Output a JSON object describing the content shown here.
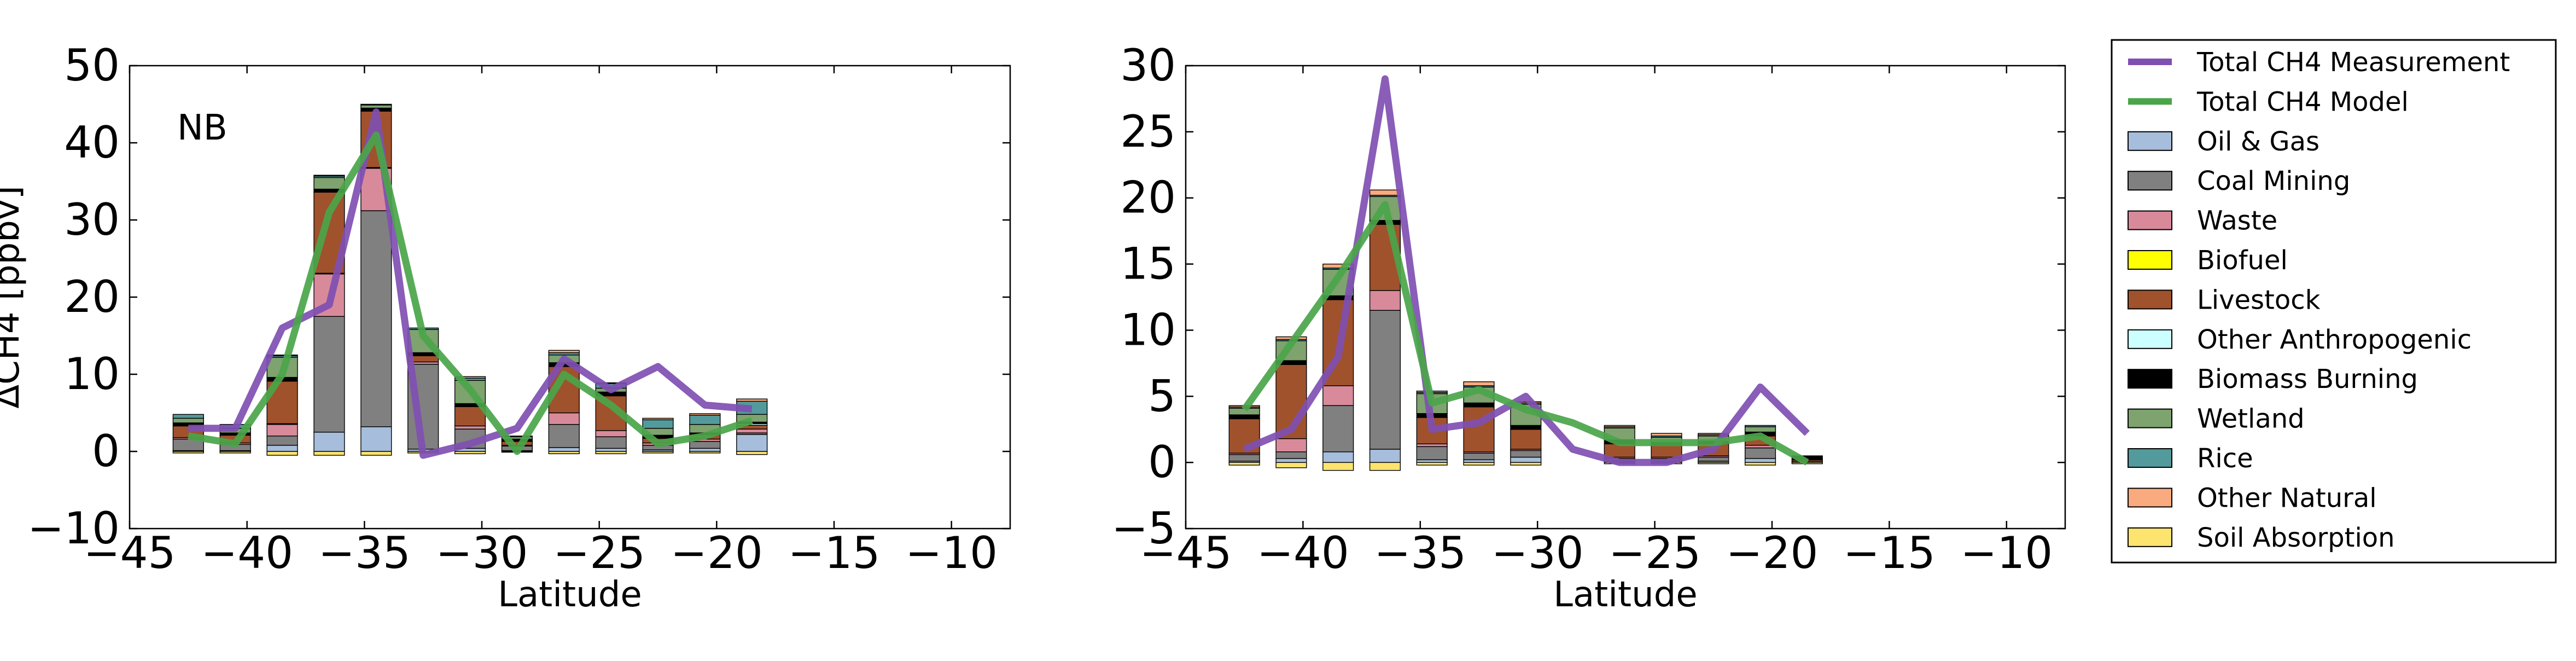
{
  "chart_data": [
    {
      "type": "bar",
      "title": "",
      "annotation": "NB",
      "xlabel": "Latitude",
      "ylabel": "ΔCH4 [ppbv]",
      "xlim": [
        -45,
        -7.5
      ],
      "ylim": [
        -10,
        50
      ],
      "xticks": [
        -45,
        -40,
        -35,
        -30,
        -25,
        -20,
        -15,
        -10
      ],
      "xtick_labels": [
        "−45",
        "−40",
        "−35",
        "−30",
        "−25",
        "−20",
        "−15",
        "−10"
      ],
      "yticks": [
        -10,
        0,
        10,
        20,
        30,
        40,
        50
      ],
      "ytick_labels": [
        "−10",
        "0",
        "10",
        "20",
        "30",
        "40",
        "50"
      ],
      "grid": false,
      "stack_order": [
        "Oil & Gas",
        "Coal Mining",
        "Waste",
        "Biofuel",
        "Livestock",
        "Other Anthropogenic",
        "Biomass Burning",
        "Wetland",
        "Rice",
        "Other Natural"
      ],
      "bars": [
        {
          "x": -42.5,
          "components": {
            "Oil & Gas": 0.1,
            "Coal Mining": 1.5,
            "Waste": 0.2,
            "Biofuel": 0.0,
            "Livestock": 1.5,
            "Other Anthropogenic": 0.0,
            "Biomass Burning": 0.4,
            "Wetland": 0.6,
            "Rice": 0.5,
            "Other Natural": 0.0
          },
          "soil": -0.2
        },
        {
          "x": -40.5,
          "components": {
            "Oil & Gas": 0.1,
            "Coal Mining": 0.8,
            "Waste": 0.2,
            "Biofuel": 0.0,
            "Livestock": 1.0,
            "Other Anthropogenic": 0.0,
            "Biomass Burning": 0.3,
            "Wetland": 0.6,
            "Rice": 0.5,
            "Other Natural": 0.0
          },
          "soil": -0.2
        },
        {
          "x": -38.5,
          "components": {
            "Oil & Gas": 0.8,
            "Coal Mining": 1.2,
            "Waste": 1.5,
            "Biofuel": 0.1,
            "Livestock": 5.5,
            "Other Anthropogenic": 0.1,
            "Biomass Burning": 0.4,
            "Wetland": 2.6,
            "Rice": 0.2,
            "Other Natural": 0.1
          },
          "soil": -0.5
        },
        {
          "x": -36.5,
          "components": {
            "Oil & Gas": 2.5,
            "Coal Mining": 15.0,
            "Waste": 5.5,
            "Biofuel": 0.1,
            "Livestock": 10.5,
            "Other Anthropogenic": 0.1,
            "Biomass Burning": 0.3,
            "Wetland": 1.5,
            "Rice": 0.2,
            "Other Natural": 0.1
          },
          "soil": -0.5
        },
        {
          "x": -34.5,
          "components": {
            "Oil & Gas": 3.2,
            "Coal Mining": 28.0,
            "Waste": 5.5,
            "Biofuel": 0.1,
            "Livestock": 7.3,
            "Other Anthropogenic": 0.1,
            "Biomass Burning": 0.3,
            "Wetland": 0.4,
            "Rice": 0.1,
            "Other Natural": 0.0
          },
          "soil": -0.5
        },
        {
          "x": -32.5,
          "components": {
            "Oil & Gas": 0.3,
            "Coal Mining": 11.0,
            "Waste": 0.3,
            "Biofuel": 0.0,
            "Livestock": 0.8,
            "Other Anthropogenic": 0.0,
            "Biomass Burning": 0.4,
            "Wetland": 3.0,
            "Rice": 0.2,
            "Other Natural": 0.0
          },
          "soil": -0.2
        },
        {
          "x": -30.5,
          "components": {
            "Oil & Gas": 0.4,
            "Coal Mining": 2.5,
            "Waste": 0.4,
            "Biofuel": 0.0,
            "Livestock": 2.5,
            "Other Anthropogenic": 0.0,
            "Biomass Burning": 0.4,
            "Wetland": 3.0,
            "Rice": 0.3,
            "Other Natural": 0.2
          },
          "soil": -0.3
        },
        {
          "x": -28.5,
          "components": {
            "Oil & Gas": 0.1,
            "Coal Mining": 0.6,
            "Waste": 0.1,
            "Biofuel": 0.0,
            "Livestock": 0.5,
            "Other Anthropogenic": 0.0,
            "Biomass Burning": 0.3,
            "Wetland": 0.3,
            "Rice": 0.1,
            "Other Natural": 0.0
          },
          "soil": -0.1
        },
        {
          "x": -26.5,
          "components": {
            "Oil & Gas": 0.5,
            "Coal Mining": 3.0,
            "Waste": 1.5,
            "Biofuel": 0.0,
            "Livestock": 6.0,
            "Other Anthropogenic": 0.0,
            "Biomass Burning": 0.5,
            "Wetland": 1.0,
            "Rice": 0.3,
            "Other Natural": 0.3
          },
          "soil": -0.3
        },
        {
          "x": -24.5,
          "components": {
            "Oil & Gas": 0.4,
            "Coal Mining": 1.5,
            "Waste": 0.8,
            "Biofuel": 0.0,
            "Livestock": 4.5,
            "Other Anthropogenic": 0.0,
            "Biomass Burning": 0.5,
            "Wetland": 0.5,
            "Rice": 0.6,
            "Other Natural": 0.1
          },
          "soil": -0.3
        },
        {
          "x": -22.5,
          "components": {
            "Oil & Gas": 0.2,
            "Coal Mining": 0.6,
            "Waste": 0.3,
            "Biofuel": 0.0,
            "Livestock": 0.6,
            "Other Anthropogenic": 0.1,
            "Biomass Burning": 0.3,
            "Wetland": 0.9,
            "Rice": 1.1,
            "Other Natural": 0.2
          },
          "soil": -0.2
        },
        {
          "x": -20.5,
          "components": {
            "Oil & Gas": 0.4,
            "Coal Mining": 0.9,
            "Waste": 0.3,
            "Biofuel": 0.0,
            "Livestock": 0.6,
            "Other Anthropogenic": 0.0,
            "Biomass Burning": 0.2,
            "Wetland": 1.1,
            "Rice": 1.2,
            "Other Natural": 0.2
          },
          "soil": -0.2
        },
        {
          "x": -18.5,
          "components": {
            "Oil & Gas": 2.2,
            "Coal Mining": 0.2,
            "Waste": 0.5,
            "Biofuel": 0.0,
            "Livestock": 0.5,
            "Other Anthropogenic": 0.2,
            "Biomass Burning": 0.2,
            "Wetland": 1.0,
            "Rice": 1.7,
            "Other Natural": 0.3
          },
          "soil": -0.4
        }
      ],
      "series": [
        {
          "name": "Total CH4 Measurement",
          "color": "#7f4fb2",
          "x": [
            -42.5,
            -40.5,
            -38.5,
            -36.5,
            -34.5,
            -32.5,
            -30.5,
            -28.5,
            -26.5,
            -24.5,
            -22.5,
            -20.5,
            -18.5
          ],
          "y": [
            3,
            3,
            16,
            19,
            44,
            -0.5,
            1,
            3,
            12,
            8,
            11,
            6,
            5.5
          ]
        },
        {
          "name": "Total CH4 Model",
          "color": "#4aa54a",
          "x": [
            -42.5,
            -40.5,
            -38.5,
            -36.5,
            -34.5,
            -32.5,
            -30.5,
            -28.5,
            -26.5,
            -24.5,
            -22.5,
            -20.5,
            -18.5
          ],
          "y": [
            2,
            1,
            10,
            31,
            41,
            15,
            8,
            0,
            10,
            6,
            1,
            2,
            4
          ]
        }
      ]
    },
    {
      "type": "bar",
      "title": "",
      "annotation": "",
      "xlabel": "Latitude",
      "ylabel": "",
      "xlim": [
        -45,
        -7.5
      ],
      "ylim": [
        -5,
        30
      ],
      "xticks": [
        -45,
        -40,
        -35,
        -30,
        -25,
        -20,
        -15,
        -10
      ],
      "xtick_labels": [
        "−45",
        "−40",
        "−35",
        "−30",
        "−25",
        "−20",
        "−15",
        "−10"
      ],
      "yticks": [
        -5,
        0,
        5,
        10,
        15,
        20,
        25,
        30
      ],
      "ytick_labels": [
        "−5",
        "0",
        "5",
        "10",
        "15",
        "20",
        "25",
        "30"
      ],
      "grid": false,
      "stack_order": [
        "Oil & Gas",
        "Coal Mining",
        "Waste",
        "Biofuel",
        "Livestock",
        "Other Anthropogenic",
        "Biomass Burning",
        "Wetland",
        "Rice",
        "Other Natural"
      ],
      "bars": [
        {
          "x": -42.5,
          "components": {
            "Oil & Gas": 0.1,
            "Coal Mining": 0.5,
            "Waste": 0.1,
            "Biofuel": 0.0,
            "Livestock": 2.6,
            "Other Anthropogenic": 0.0,
            "Biomass Burning": 0.3,
            "Wetland": 0.5,
            "Rice": 0.1,
            "Other Natural": 0.1
          },
          "soil": -0.2
        },
        {
          "x": -40.5,
          "components": {
            "Oil & Gas": 0.3,
            "Coal Mining": 0.5,
            "Waste": 1.0,
            "Biofuel": 0.0,
            "Livestock": 5.6,
            "Other Anthropogenic": 0.0,
            "Biomass Burning": 0.3,
            "Wetland": 1.5,
            "Rice": 0.1,
            "Other Natural": 0.2
          },
          "soil": -0.4
        },
        {
          "x": -38.5,
          "components": {
            "Oil & Gas": 0.8,
            "Coal Mining": 3.5,
            "Waste": 1.5,
            "Biofuel": 0.0,
            "Livestock": 6.5,
            "Other Anthropogenic": 0.0,
            "Biomass Burning": 0.3,
            "Wetland": 2.0,
            "Rice": 0.1,
            "Other Natural": 0.3
          },
          "soil": -0.6
        },
        {
          "x": -36.5,
          "components": {
            "Oil & Gas": 1.0,
            "Coal Mining": 10.5,
            "Waste": 1.5,
            "Biofuel": 0.0,
            "Livestock": 5.0,
            "Other Anthropogenic": 0.0,
            "Biomass Burning": 0.3,
            "Wetland": 1.8,
            "Rice": 0.1,
            "Other Natural": 0.4
          },
          "soil": -0.6
        },
        {
          "x": -34.5,
          "components": {
            "Oil & Gas": 0.2,
            "Coal Mining": 1.0,
            "Waste": 0.2,
            "Biofuel": 0.0,
            "Livestock": 2.0,
            "Other Anthropogenic": 0.0,
            "Biomass Burning": 0.3,
            "Wetland": 1.5,
            "Rice": 0.1,
            "Other Natural": 0.1
          },
          "soil": -0.2
        },
        {
          "x": -32.5,
          "components": {
            "Oil & Gas": 0.2,
            "Coal Mining": 0.5,
            "Waste": 0.1,
            "Biofuel": 0.0,
            "Livestock": 3.4,
            "Other Anthropogenic": 0.0,
            "Biomass Burning": 0.3,
            "Wetland": 1.2,
            "Rice": 0.1,
            "Other Natural": 0.3
          },
          "soil": -0.2
        },
        {
          "x": -30.5,
          "components": {
            "Oil & Gas": 0.4,
            "Coal Mining": 0.5,
            "Waste": 0.1,
            "Biofuel": 0.0,
            "Livestock": 1.5,
            "Other Anthropogenic": 0.0,
            "Biomass Burning": 0.3,
            "Wetland": 1.6,
            "Rice": 0.1,
            "Other Natural": 0.1
          },
          "soil": -0.2
        },
        {
          "x": -26.5,
          "components": {
            "Oil & Gas": 0.1,
            "Coal Mining": 0.2,
            "Waste": 0.1,
            "Biofuel": 0.0,
            "Livestock": 1.0,
            "Other Anthropogenic": 0.0,
            "Biomass Burning": 0.3,
            "Wetland": 0.9,
            "Rice": 0.1,
            "Other Natural": 0.1
          },
          "soil": -0.1
        },
        {
          "x": -24.5,
          "components": {
            "Oil & Gas": 0.1,
            "Coal Mining": 0.2,
            "Waste": 0.1,
            "Biofuel": 0.0,
            "Livestock": 0.9,
            "Other Anthropogenic": 0.0,
            "Biomass Burning": 0.2,
            "Wetland": 0.4,
            "Rice": 0.1,
            "Other Natural": 0.2
          },
          "soil": -0.1
        },
        {
          "x": -22.5,
          "components": {
            "Oil & Gas": 0.1,
            "Coal Mining": 0.3,
            "Waste": 0.1,
            "Biofuel": 0.0,
            "Livestock": 0.9,
            "Other Anthropogenic": 0.0,
            "Biomass Burning": 0.2,
            "Wetland": 0.4,
            "Rice": 0.1,
            "Other Natural": 0.1
          },
          "soil": -0.1
        },
        {
          "x": -20.5,
          "components": {
            "Oil & Gas": 0.3,
            "Coal Mining": 0.8,
            "Waste": 0.2,
            "Biofuel": 0.0,
            "Livestock": 0.7,
            "Other Anthropogenic": 0.0,
            "Biomass Burning": 0.3,
            "Wetland": 0.4,
            "Rice": 0.1,
            "Other Natural": 0.0
          },
          "soil": -0.2
        },
        {
          "x": -18.5,
          "components": {
            "Oil & Gas": 0.0,
            "Coal Mining": 0.1,
            "Waste": 0.0,
            "Biofuel": 0.0,
            "Livestock": 0.1,
            "Other Anthropogenic": 0.0,
            "Biomass Burning": 0.3,
            "Wetland": 0.0,
            "Rice": 0.0,
            "Other Natural": 0.0
          },
          "soil": -0.1
        }
      ],
      "series": [
        {
          "name": "Total CH4 Measurement",
          "color": "#7f4fb2",
          "x": [
            -42.5,
            -40.5,
            -38.5,
            -36.5,
            -34.5,
            -32.5,
            -30.5,
            -28.5,
            -26.5,
            -24.5,
            -22.5,
            -20.5,
            -18.5
          ],
          "y": [
            1,
            2.5,
            8,
            29,
            2.5,
            3,
            5,
            1,
            0,
            0,
            1,
            5.7,
            2.2
          ]
        },
        {
          "name": "Total CH4 Model",
          "color": "#4aa54a",
          "x": [
            -42.5,
            -40.5,
            -38.5,
            -36.5,
            -34.5,
            -32.5,
            -30.5,
            -28.5,
            -26.5,
            -24.5,
            -22.5,
            -20.5,
            -18.5
          ],
          "y": [
            4,
            9,
            14,
            19.5,
            4.5,
            5.5,
            4,
            3,
            1.5,
            1.5,
            1.5,
            2,
            0
          ]
        }
      ]
    }
  ],
  "legend": {
    "placement": "right",
    "entries": [
      {
        "label": "Total CH4 Measurement",
        "kind": "line",
        "color": "#7f4fb2"
      },
      {
        "label": "Total CH4 Model",
        "kind": "line",
        "color": "#4aa54a"
      },
      {
        "label": "Oil & Gas",
        "kind": "patch",
        "color": "#a6bedb"
      },
      {
        "label": "Coal Mining",
        "kind": "patch",
        "color": "#808080"
      },
      {
        "label": "Waste",
        "kind": "patch",
        "color": "#d88a9b"
      },
      {
        "label": "Biofuel",
        "kind": "patch",
        "color": "#ffff00"
      },
      {
        "label": "Livestock",
        "kind": "patch",
        "color": "#a0522d"
      },
      {
        "label": "Other Anthropogenic",
        "kind": "patch",
        "color": "#ccffff"
      },
      {
        "label": "Biomass Burning",
        "kind": "patch",
        "color": "#000000"
      },
      {
        "label": "Wetland",
        "kind": "patch",
        "color": "#7ea36e"
      },
      {
        "label": "Rice",
        "kind": "patch",
        "color": "#539a9c"
      },
      {
        "label": "Other Natural",
        "kind": "patch",
        "color": "#f9aa7e"
      },
      {
        "label": "Soil Absorption",
        "kind": "patch",
        "color": "#fde46e"
      }
    ]
  }
}
